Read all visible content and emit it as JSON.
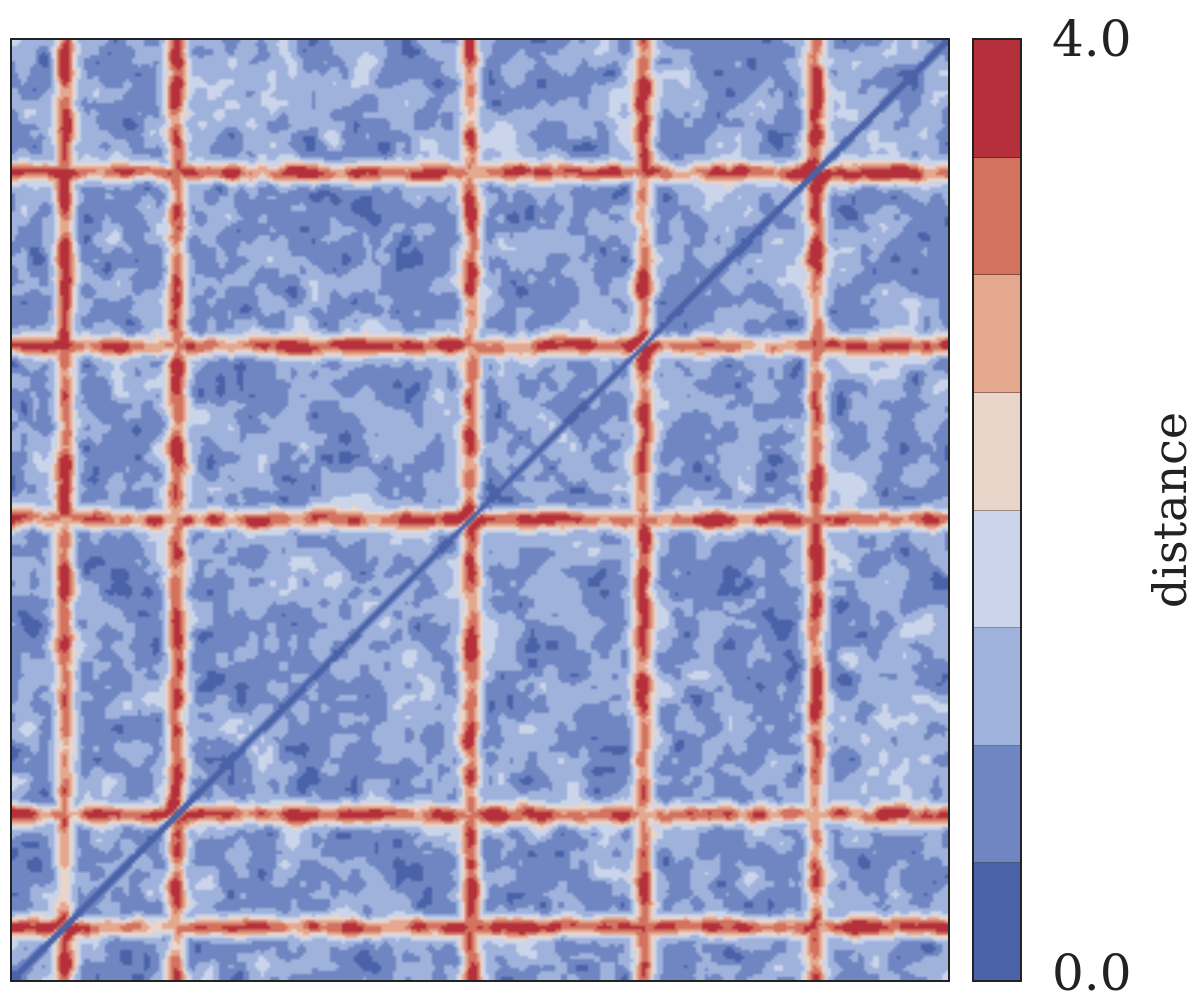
{
  "chart_data": {
    "type": "heatmap",
    "title": "",
    "xlabel": "",
    "ylabel": "",
    "colorbar": {
      "label": "distance",
      "min": 0.0,
      "max": 4.0,
      "min_label": "0.0",
      "max_label": "4.0",
      "levels": 8,
      "colors_low_to_high": [
        "#4a62a8",
        "#6f86c2",
        "#9fb2dc",
        "#cad4ea",
        "#ead5cb",
        "#e4a88f",
        "#d2725f",
        "#b5303a"
      ]
    },
    "matrix": {
      "symmetric": true,
      "diagonal_value": 0.0,
      "description_of_structure": "",
      "block_boundaries_fraction": [
        0.055,
        0.175,
        0.49,
        0.675,
        0.86
      ],
      "boundary_value_range": [
        3.2,
        4.0
      ],
      "background_value_range": [
        0.5,
        2.2
      ]
    },
    "axes": {
      "show_ticks": false,
      "grid": false
    }
  }
}
